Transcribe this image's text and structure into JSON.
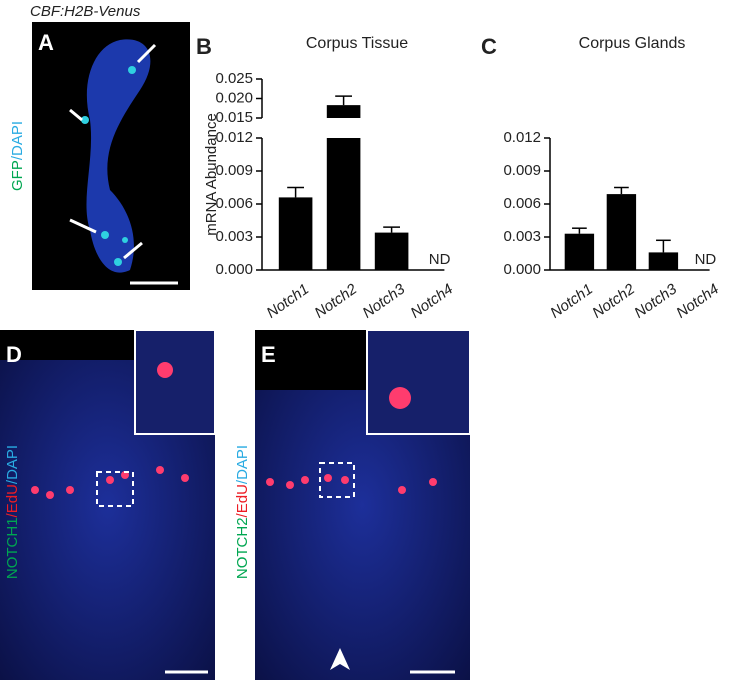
{
  "panels": {
    "a": {
      "label": "A",
      "title": "CBF:H2B-Venus",
      "stain": [
        "GFP",
        "/DAPI"
      ]
    },
    "b": {
      "label": "B"
    },
    "c": {
      "label": "C"
    },
    "d": {
      "label": "D",
      "stain": [
        "NOTCH1",
        "/EdU",
        "/DAPI"
      ]
    },
    "e": {
      "label": "E",
      "stain": [
        "NOTCH2",
        "/EdU",
        "/DAPI"
      ]
    }
  },
  "chart_data": [
    {
      "type": "bar",
      "title": "Corpus Tissue",
      "y_label": "mRNA Abundance",
      "categories": [
        "Notch1",
        "Notch2",
        "Notch3",
        "Notch4"
      ],
      "values": [
        0.0066,
        0.0183,
        0.0034,
        null
      ],
      "errors": [
        0.0009,
        0.0023,
        0.0005,
        null
      ],
      "value_labels": [
        null,
        null,
        null,
        "ND"
      ],
      "color": "#000000",
      "ylim": [
        0,
        0.025
      ],
      "y_break": [
        0.012,
        0.015
      ],
      "yticks": [
        {
          "value": 0,
          "label": "0.000"
        },
        0.003,
        0.006,
        0.009,
        0.012,
        0.015,
        {
          "value": 0.02,
          "label": "0.020"
        },
        0.025
      ]
    },
    {
      "type": "bar",
      "title": "Corpus Glands",
      "categories": [
        "Notch1",
        "Notch2",
        "Notch3",
        "Notch4"
      ],
      "values": [
        0.0033,
        0.0069,
        0.0016,
        null
      ],
      "errors": [
        0.0005,
        0.0006,
        0.0011,
        null
      ],
      "value_labels": [
        null,
        null,
        null,
        "ND"
      ],
      "color": "#000000",
      "ylim": [
        0,
        0.012
      ],
      "yticks": [
        {
          "value": 0,
          "label": "0.000"
        },
        0.003,
        0.006,
        0.009,
        0.012
      ]
    }
  ]
}
